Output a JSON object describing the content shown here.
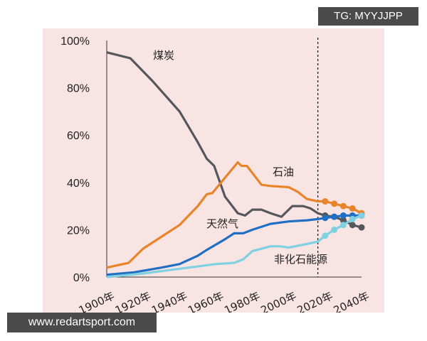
{
  "watermark_top": "TG: MYYJJPP",
  "watermark_bottom": "www.redartsport.com",
  "chart_data": {
    "type": "line",
    "title": "",
    "xlabel": "",
    "ylabel": "",
    "xlim": [
      1900,
      2040
    ],
    "ylim": [
      0,
      100
    ],
    "x_ticks": [
      "1900年",
      "1920年",
      "1940年",
      "1960年",
      "1980年",
      "2000年",
      "2020年",
      "2040年"
    ],
    "x_tick_values": [
      1900,
      1920,
      1940,
      1960,
      1980,
      2000,
      2020,
      2040
    ],
    "y_ticks": [
      "0%",
      "20%",
      "40%",
      "60%",
      "80%",
      "100%"
    ],
    "y_tick_values": [
      0,
      20,
      40,
      60,
      80,
      100
    ],
    "grid": false,
    "forecast_divider_year": 2016,
    "series": [
      {
        "name": "煤炭",
        "color": "#55575c",
        "x": [
          1900,
          1913,
          1925,
          1940,
          1950,
          1955,
          1959,
          1965,
          1972,
          1976,
          1980,
          1985,
          1990,
          1996,
          2002,
          2008,
          2012,
          2016,
          2020,
          2025,
          2030,
          2035,
          2040
        ],
        "y": [
          95,
          92.5,
          83,
          70,
          57,
          50,
          47,
          34,
          27,
          26,
          28.5,
          28.5,
          27,
          25.5,
          30,
          30,
          29,
          27,
          26,
          25.5,
          24,
          22,
          21
        ]
      },
      {
        "name": "石油",
        "color": "#e8842a",
        "x": [
          1900,
          1912,
          1920,
          1930,
          1940,
          1950,
          1955,
          1958,
          1965,
          1972,
          1974,
          1977,
          1985,
          1990,
          2000,
          2005,
          2010,
          2016,
          2020,
          2025,
          2030,
          2035,
          2040
        ],
        "y": [
          4,
          6,
          12,
          17,
          22,
          30,
          35,
          35.5,
          42,
          48.5,
          47,
          47,
          39,
          38.5,
          38,
          36,
          33,
          32,
          32,
          31,
          30,
          29,
          27
        ]
      },
      {
        "name": "天然气",
        "color": "#1f6fc4",
        "x": [
          1900,
          1915,
          1930,
          1940,
          1950,
          1955,
          1965,
          1970,
          1975,
          1980,
          1990,
          2000,
          2010,
          2016,
          2020,
          2025,
          2030,
          2035,
          2040
        ],
        "y": [
          1,
          2,
          4,
          5.5,
          9,
          11.5,
          16,
          18.5,
          18.5,
          20,
          22.5,
          23.5,
          24,
          24.5,
          25,
          25.5,
          26,
          26,
          26
        ]
      },
      {
        "name": "非化石能源",
        "color": "#7fd0e0",
        "x": [
          1900,
          1920,
          1940,
          1960,
          1970,
          1975,
          1980,
          1990,
          1995,
          2000,
          2010,
          2016,
          2020,
          2025,
          2030,
          2035,
          2040
        ],
        "y": [
          0,
          1.5,
          3.5,
          5.5,
          6,
          7.5,
          11,
          13,
          13,
          12.5,
          14,
          15,
          17.5,
          20,
          22,
          24.5,
          26
        ]
      }
    ],
    "labels": [
      {
        "text": "煤炭",
        "series": 0
      },
      {
        "text": "石油",
        "series": 1
      },
      {
        "text": "天然气",
        "series": 2
      },
      {
        "text": "非化石能源",
        "series": 3
      }
    ]
  }
}
